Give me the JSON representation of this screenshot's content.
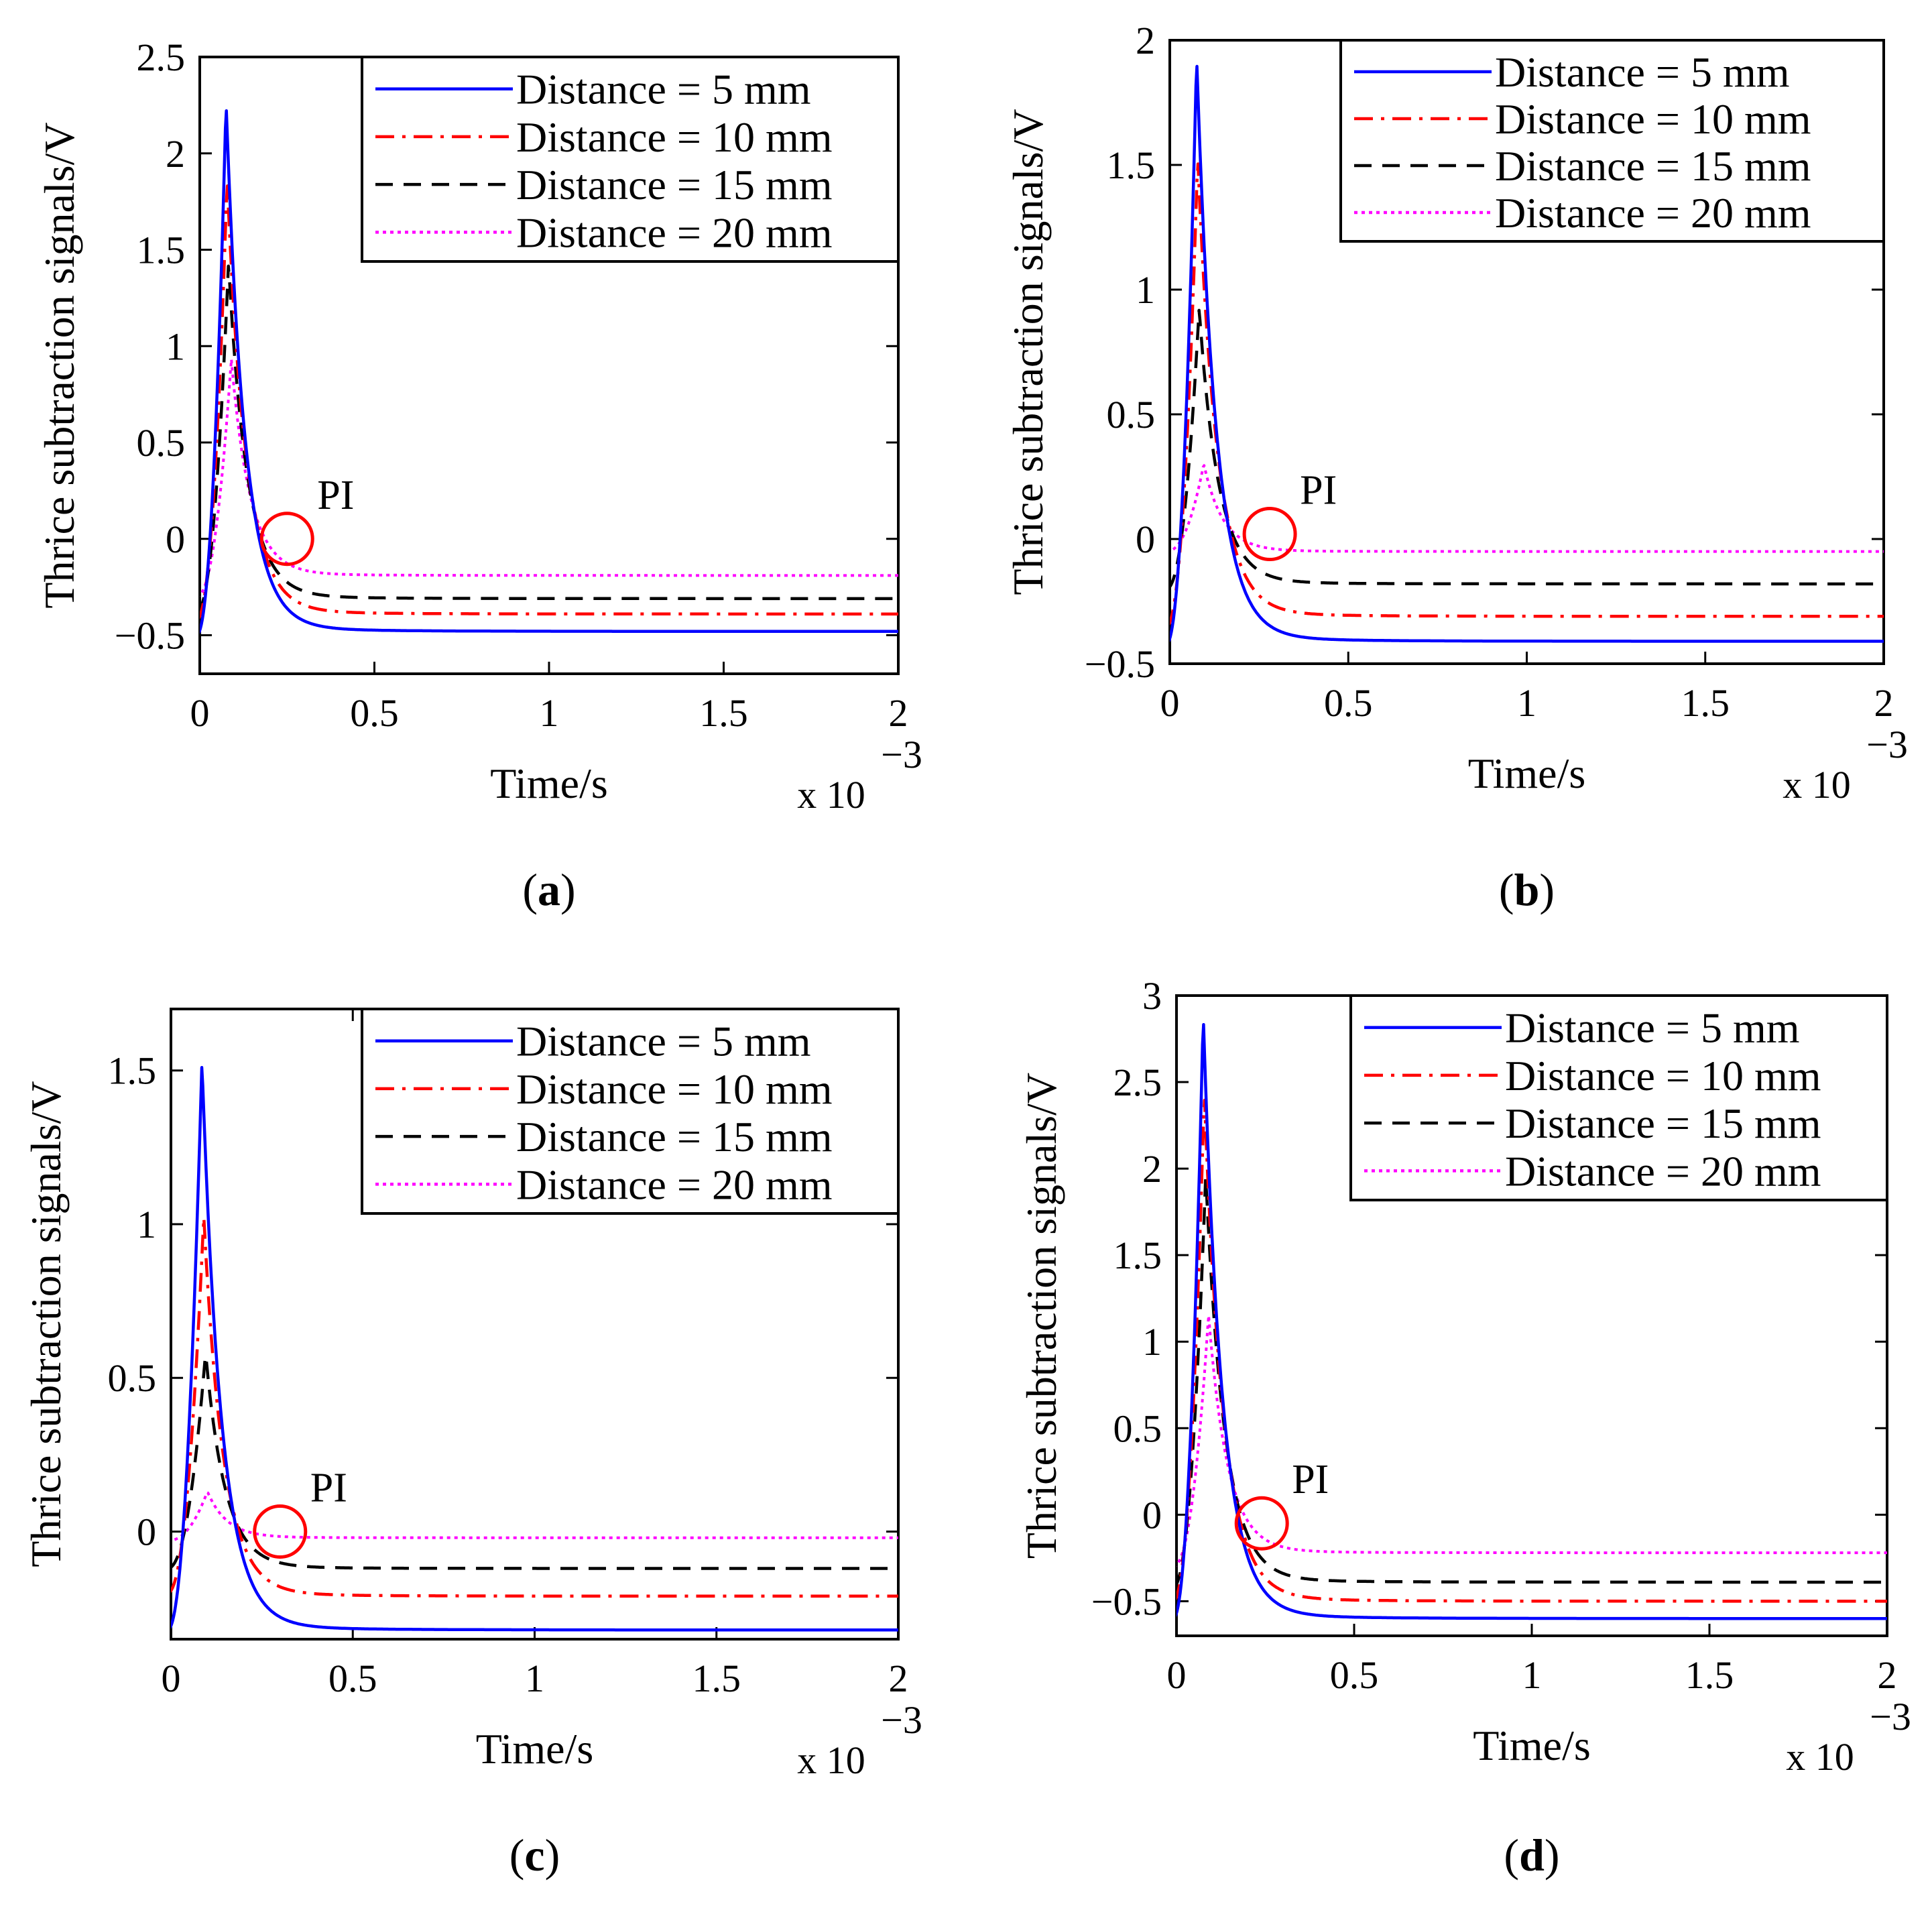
{
  "figure": {
    "colors": {
      "d5": "#0000ff",
      "d10": "#ff0000",
      "d15": "#000000",
      "d20": "#ff00ff",
      "marker": "#ff0000"
    }
  },
  "chart_data": [
    {
      "type": "line",
      "panel_label": "(a)",
      "panel_letter": "a",
      "xlabel": "Time/s",
      "ylabel": "Thrice subtraction signals/V",
      "x_exponent_prefix": "x 10",
      "x_exponent_power": "−3",
      "xlim": [
        0,
        2
      ],
      "ylim": [
        -0.7,
        2.5
      ],
      "xticks": [
        0,
        0.5,
        1,
        1.5,
        2
      ],
      "xtick_labels": [
        "0",
        "0.5",
        "1",
        "1.5",
        "2"
      ],
      "yticks": [
        -0.5,
        0,
        0.5,
        1,
        1.5,
        2,
        2.5
      ],
      "ytick_labels": [
        "−0.5",
        "0",
        "0.5",
        "1",
        "1.5",
        "2",
        "2.5"
      ],
      "annotation": {
        "text": "PI",
        "x": 0.25,
        "y": 0.0
      },
      "series": [
        {
          "name": "Distance = 5 mm",
          "color_key": "d5",
          "dash": "solid",
          "start": -0.5,
          "peak_x": 0.075,
          "peak_y": 2.25,
          "end": -0.48
        },
        {
          "name": "Distance = 10 mm",
          "color_key": "d10",
          "dash": "dashdot",
          "start": -0.42,
          "peak_x": 0.078,
          "peak_y": 1.85,
          "end": -0.39
        },
        {
          "name": "Distance = 15 mm",
          "color_key": "d15",
          "dash": "dashed",
          "start": -0.38,
          "peak_x": 0.082,
          "peak_y": 1.42,
          "end": -0.31
        },
        {
          "name": "Distance = 20 mm",
          "color_key": "d20",
          "dash": "dotted",
          "start": -0.3,
          "peak_x": 0.09,
          "peak_y": 0.93,
          "end": -0.19
        }
      ]
    },
    {
      "type": "line",
      "panel_label": "(b)",
      "panel_letter": "b",
      "xlabel": "Time/s",
      "ylabel": "Thrice subtraction signals/V",
      "x_exponent_prefix": "x 10",
      "x_exponent_power": "−3",
      "xlim": [
        0,
        2
      ],
      "ylim": [
        -0.5,
        2
      ],
      "xticks": [
        0,
        0.5,
        1,
        1.5,
        2
      ],
      "xtick_labels": [
        "0",
        "0.5",
        "1",
        "1.5",
        "2"
      ],
      "yticks": [
        -0.5,
        0,
        0.5,
        1,
        1.5,
        2
      ],
      "ytick_labels": [
        "−0.5",
        "0",
        "0.5",
        "1",
        "1.5",
        "2"
      ],
      "annotation": {
        "text": "PI",
        "x": 0.28,
        "y": 0.02
      },
      "series": [
        {
          "name": "Distance = 5 mm",
          "color_key": "d5",
          "dash": "solid",
          "start": -0.42,
          "peak_x": 0.075,
          "peak_y": 1.92,
          "end": -0.41
        },
        {
          "name": "Distance = 10 mm",
          "color_key": "d10",
          "dash": "dashdot",
          "start": -0.35,
          "peak_x": 0.078,
          "peak_y": 1.52,
          "end": -0.31
        },
        {
          "name": "Distance = 15 mm",
          "color_key": "d15",
          "dash": "dashed",
          "start": -0.2,
          "peak_x": 0.082,
          "peak_y": 0.92,
          "end": -0.18
        },
        {
          "name": "Distance = 20 mm",
          "color_key": "d20",
          "dash": "dotted",
          "start": -0.05,
          "peak_x": 0.095,
          "peak_y": 0.3,
          "end": -0.05
        }
      ]
    },
    {
      "type": "line",
      "panel_label": "(c)",
      "panel_letter": "c",
      "xlabel": "Time/s",
      "ylabel": "Thrice subtraction signals/V",
      "x_exponent_prefix": "x 10",
      "x_exponent_power": "−3",
      "xlim": [
        0,
        2
      ],
      "ylim": [
        -0.35,
        1.7
      ],
      "xticks": [
        0,
        0.5,
        1,
        1.5,
        2
      ],
      "xtick_labels": [
        "0",
        "0.5",
        "1",
        "1.5",
        "2"
      ],
      "yticks": [
        0,
        0.5,
        1,
        1.5
      ],
      "ytick_labels": [
        "0",
        "0.5",
        "1",
        "1.5"
      ],
      "annotation": {
        "text": "PI",
        "x": 0.3,
        "y": 0.0
      },
      "series": [
        {
          "name": "Distance = 5 mm",
          "color_key": "d5",
          "dash": "solid",
          "start": -0.32,
          "peak_x": 0.085,
          "peak_y": 1.52,
          "end": -0.32
        },
        {
          "name": "Distance = 10 mm",
          "color_key": "d10",
          "dash": "dashdot",
          "start": -0.2,
          "peak_x": 0.09,
          "peak_y": 1.02,
          "end": -0.21
        },
        {
          "name": "Distance = 15 mm",
          "color_key": "d15",
          "dash": "dashed",
          "start": -0.12,
          "peak_x": 0.095,
          "peak_y": 0.58,
          "end": -0.12
        },
        {
          "name": "Distance = 20 mm",
          "color_key": "d20",
          "dash": "dotted",
          "start": -0.03,
          "peak_x": 0.1,
          "peak_y": 0.13,
          "end": -0.02
        }
      ]
    },
    {
      "type": "line",
      "panel_label": "(d)",
      "panel_letter": "d",
      "xlabel": "Time/s",
      "ylabel": "Thrice subtraction signals/V",
      "x_exponent_prefix": "x 10",
      "x_exponent_power": "−3",
      "xlim": [
        0,
        2
      ],
      "ylim": [
        -0.7,
        3
      ],
      "xticks": [
        0,
        0.5,
        1,
        1.5,
        2
      ],
      "xtick_labels": [
        "0",
        "0.5",
        "1",
        "1.5",
        "2"
      ],
      "yticks": [
        -0.5,
        0,
        0.5,
        1,
        1.5,
        2,
        2.5,
        3
      ],
      "ytick_labels": [
        "−0.5",
        "0",
        "0.5",
        "1",
        "1.5",
        "2",
        "2.5",
        "3"
      ],
      "annotation": {
        "text": "PI",
        "x": 0.24,
        "y": -0.05
      },
      "series": [
        {
          "name": "Distance = 5 mm",
          "color_key": "d5",
          "dash": "solid",
          "start": -0.6,
          "peak_x": 0.075,
          "peak_y": 2.87,
          "end": -0.6
        },
        {
          "name": "Distance = 10 mm",
          "color_key": "d10",
          "dash": "dashdot",
          "start": -0.5,
          "peak_x": 0.078,
          "peak_y": 2.42,
          "end": -0.5
        },
        {
          "name": "Distance = 15 mm",
          "color_key": "d15",
          "dash": "dashed",
          "start": -0.42,
          "peak_x": 0.082,
          "peak_y": 1.95,
          "end": -0.39
        },
        {
          "name": "Distance = 20 mm",
          "color_key": "d20",
          "dash": "dotted",
          "start": -0.3,
          "peak_x": 0.09,
          "peak_y": 1.15,
          "end": -0.22
        }
      ]
    }
  ]
}
